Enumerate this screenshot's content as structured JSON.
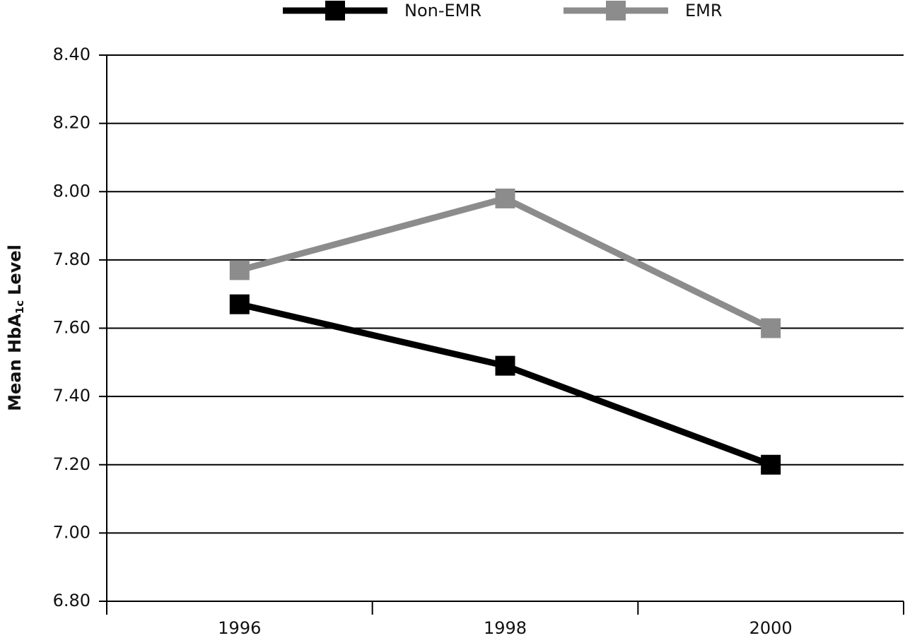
{
  "chart_data": {
    "type": "line",
    "y_label": [
      "Mean HbA",
      "1c",
      "Level"
    ],
    "categories": [
      "1996",
      "1998",
      "2000"
    ],
    "series": [
      {
        "name": "Non-EMR",
        "color": "#000000",
        "values": [
          7.67,
          7.49,
          7.2
        ]
      },
      {
        "name": "EMR",
        "color": "#8c8c8c",
        "values": [
          7.77,
          7.98,
          7.6
        ]
      }
    ],
    "ylim": [
      6.8,
      8.4
    ],
    "yticks": [
      {
        "value": 6.8,
        "label": "6.80"
      },
      {
        "value": 7.0,
        "label": "7.00"
      },
      {
        "value": 7.2,
        "label": "7.20"
      },
      {
        "value": 7.4,
        "label": "7.40"
      },
      {
        "value": 7.6,
        "label": "7.60"
      },
      {
        "value": 7.8,
        "label": "7.80"
      },
      {
        "value": 8.0,
        "label": "8.00"
      },
      {
        "value": 8.2,
        "label": "8.20"
      },
      {
        "value": 8.4,
        "label": "8.40"
      }
    ],
    "grid": true,
    "legend": "top"
  }
}
